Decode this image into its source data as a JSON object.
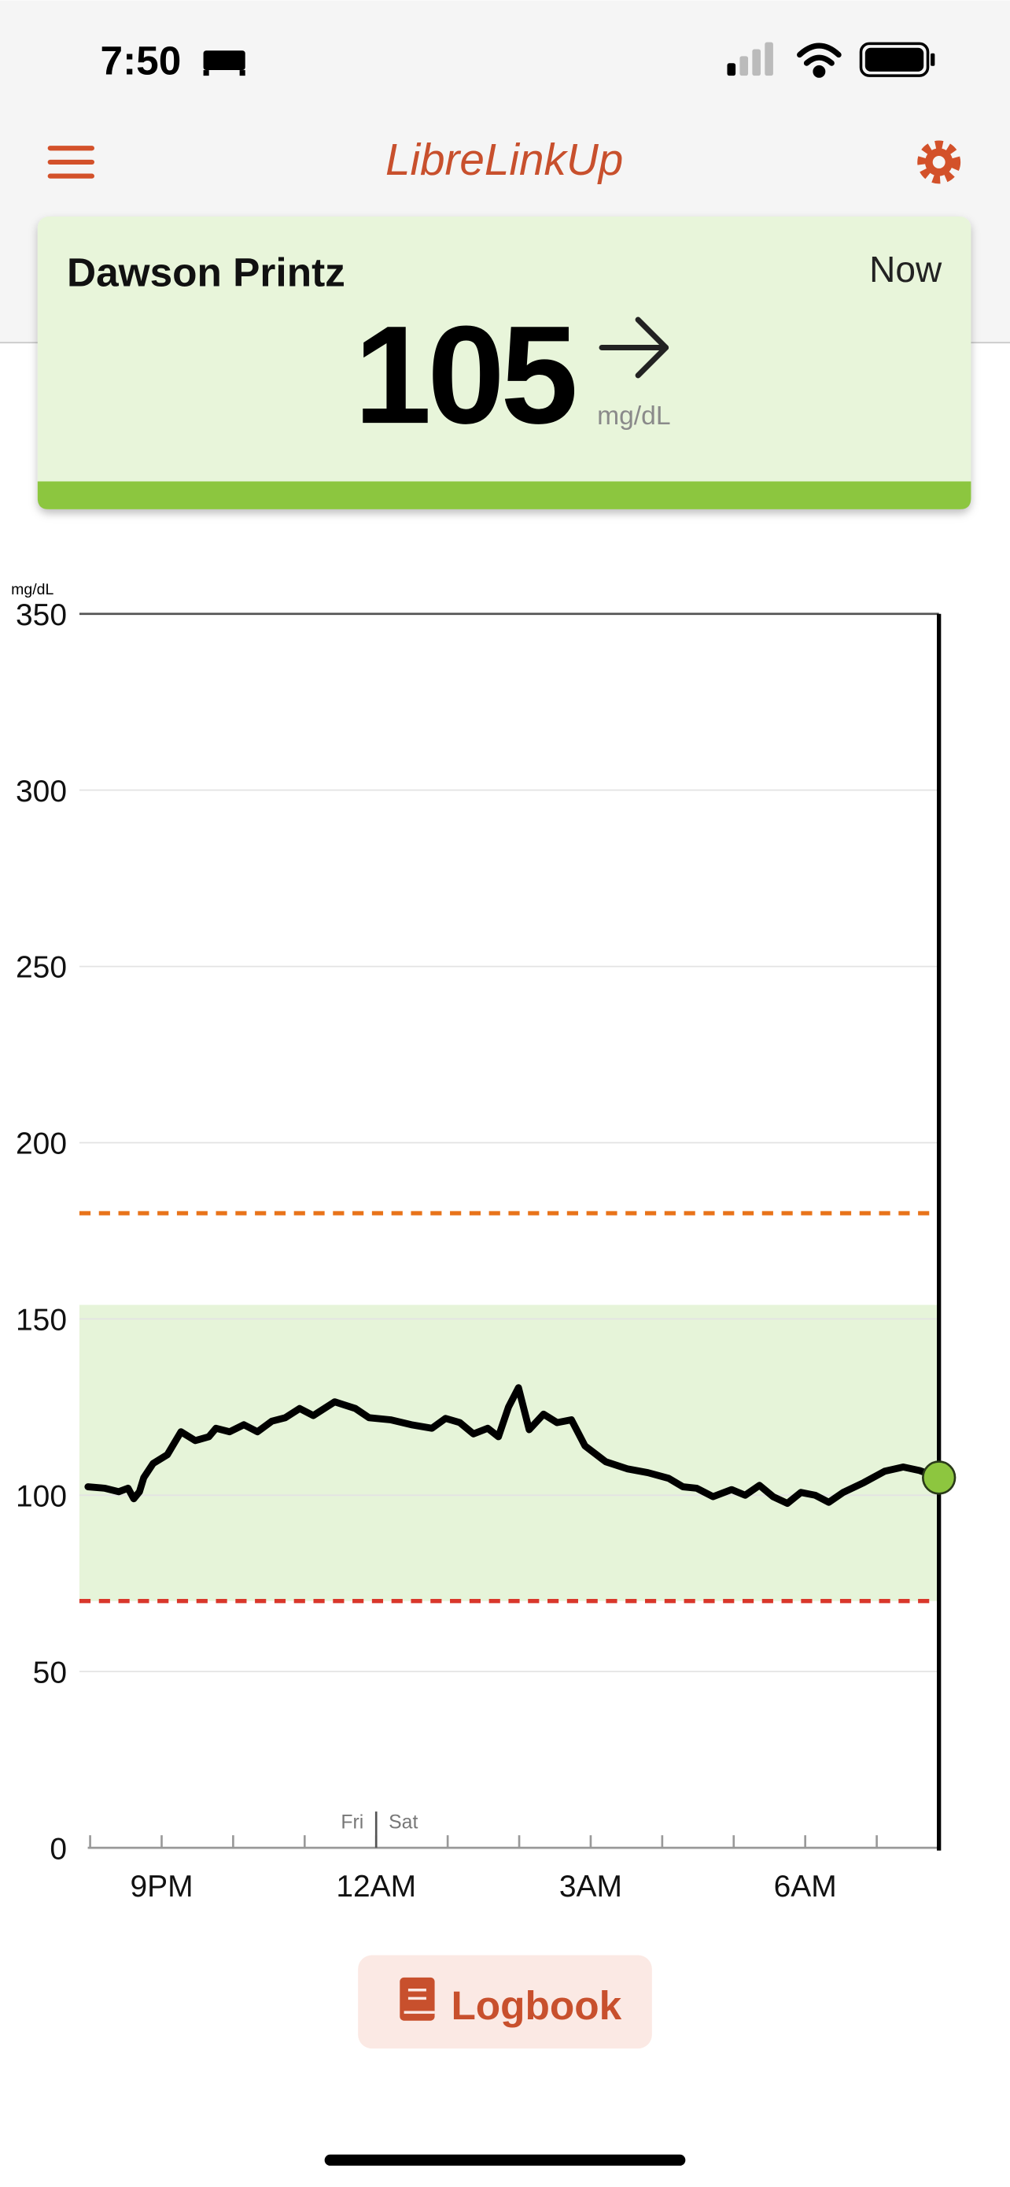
{
  "status_bar": {
    "time": "7:50"
  },
  "header": {
    "title": "LibreLinkUp"
  },
  "patient_card": {
    "name": "Dawson Printz",
    "time": "Now",
    "glucose": 105,
    "unit": "mg/dL"
  },
  "chart_data": {
    "type": "line",
    "y_label": "mg/dL",
    "x": [
      19.97,
      20.2,
      20.4,
      20.53,
      20.61,
      20.69,
      20.75,
      20.88,
      21.08,
      21.27,
      21.47,
      21.66,
      21.76,
      21.95,
      22.15,
      22.34,
      22.54,
      22.73,
      22.93,
      23.12,
      23.42,
      23.71,
      23.9,
      24.2,
      24.49,
      24.78,
      24.97,
      25.17,
      25.36,
      25.56,
      25.71,
      25.85,
      25.99,
      26.14,
      26.34,
      26.53,
      26.73,
      26.92,
      27.21,
      27.51,
      27.8,
      28.09,
      28.29,
      28.48,
      28.71,
      28.97,
      29.16,
      29.36,
      29.55,
      29.75,
      29.94,
      30.14,
      30.33,
      30.53,
      30.82,
      31.11,
      31.37,
      31.6,
      31.87
    ],
    "series": [
      {
        "color": "#000000",
        "values": [
          102.4,
          102,
          101,
          102,
          99,
          101,
          105,
          109,
          111.5,
          118,
          115.5,
          116.6,
          119,
          118,
          120,
          118,
          121,
          122,
          124.6,
          122.6,
          126.5,
          124.6,
          122,
          121.4,
          120,
          119,
          121.8,
          120.6,
          117.4,
          119,
          116.6,
          125,
          130.5,
          118.6,
          123,
          120.6,
          121.4,
          114,
          109.5,
          107.5,
          106.4,
          104.8,
          102.4,
          102,
          99.6,
          101.6,
          100,
          102.8,
          99.6,
          97.7,
          100.8,
          100,
          98,
          100.8,
          103.6,
          106.8,
          108,
          107,
          105
        ]
      }
    ],
    "xlim": [
      19.85,
      31.87
    ],
    "ylim": [
      0,
      350
    ],
    "yticks": [
      0,
      50,
      100,
      150,
      200,
      250,
      300,
      350
    ],
    "xticks": [
      {
        "value": 21,
        "label": "9PM"
      },
      {
        "value": 24,
        "label": "12AM"
      },
      {
        "value": 27,
        "label": "3AM"
      },
      {
        "value": 30,
        "label": "6AM"
      }
    ],
    "xminorticks": [
      20,
      22,
      23,
      25,
      26,
      28,
      29,
      31
    ],
    "day_boundary": {
      "value": 24,
      "labels": [
        "Fri",
        "Sat"
      ]
    },
    "target_range": [
      70,
      154
    ],
    "band_color": "#e6f4d9",
    "high_threshold": {
      "value": 180,
      "color": "#e8731a"
    },
    "low_threshold": {
      "value": 70,
      "color": "#d9372b"
    },
    "current_color": "#8dc63f",
    "grid": true
  },
  "logbook_button": {
    "label": "Logbook"
  }
}
